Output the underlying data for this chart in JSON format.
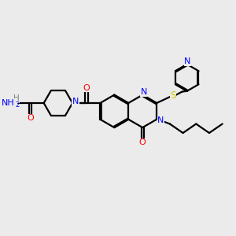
{
  "background_color": "#ebebeb",
  "bond_color": "#000000",
  "nitrogen_color": "#0000ff",
  "oxygen_color": "#ff0000",
  "sulfur_color": "#cccc00",
  "line_width": 1.6,
  "figsize": [
    3.0,
    3.0
  ],
  "dpi": 100,
  "xlim": [
    0,
    10
  ],
  "ylim": [
    0,
    10
  ]
}
